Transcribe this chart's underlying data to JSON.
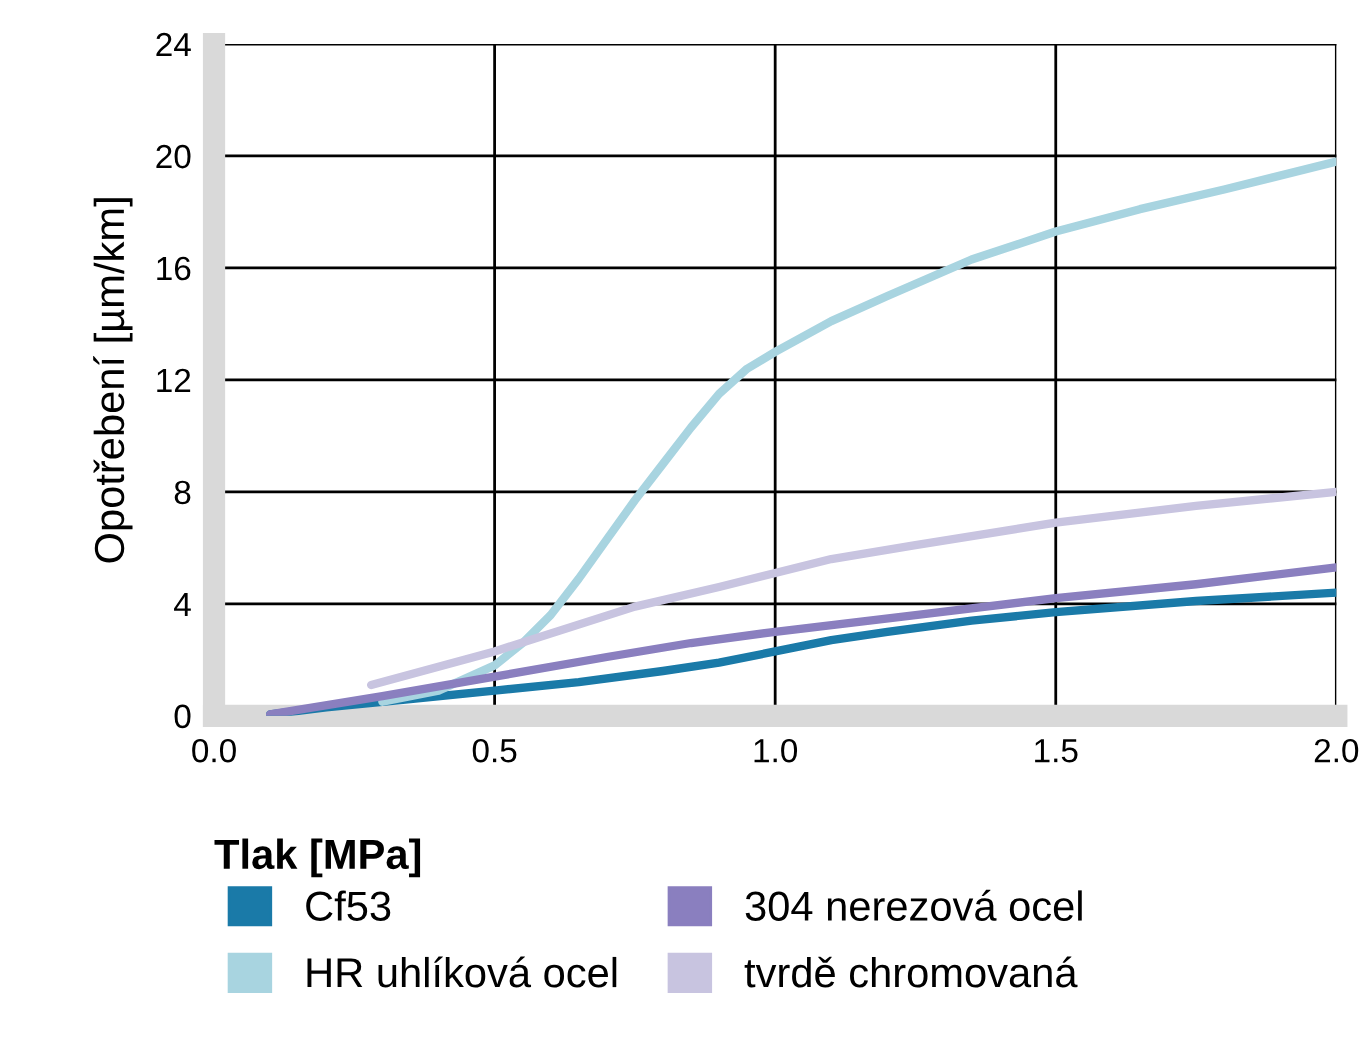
{
  "chart_data": {
    "type": "line",
    "xlabel": "Tlak [MPa]",
    "ylabel": "Opotřebení [µm/km]",
    "xlim": [
      0,
      2
    ],
    "ylim": [
      0,
      24
    ],
    "xticks": [
      {
        "value": 0,
        "label": "0.0"
      },
      {
        "value": 0.5,
        "label": "0.5"
      },
      {
        "value": 1,
        "label": "1.0"
      },
      {
        "value": 1.5,
        "label": "1.5"
      },
      {
        "value": 2,
        "label": "2.0"
      }
    ],
    "yticks": [
      0,
      4,
      8,
      12,
      16,
      20,
      24
    ],
    "grid": true,
    "legend": "bottom",
    "marker": "none",
    "line_style": "solid",
    "series": [
      {
        "name": "Cf53",
        "color": "#1a7aa8",
        "x": [
          0.1,
          0.2,
          0.35,
          0.5,
          0.65,
          0.8,
          0.9,
          1.0,
          1.1,
          1.2,
          1.35,
          1.5,
          1.75,
          2.0
        ],
        "values": [
          0.05,
          0.3,
          0.6,
          0.9,
          1.2,
          1.6,
          1.9,
          2.3,
          2.7,
          3.0,
          3.4,
          3.7,
          4.1,
          4.4
        ]
      },
      {
        "name": "HR uhlíková ocel",
        "color": "#a8d4e0",
        "x": [
          0.3,
          0.4,
          0.5,
          0.55,
          0.6,
          0.65,
          0.7,
          0.75,
          0.8,
          0.85,
          0.9,
          0.95,
          1.0,
          1.1,
          1.2,
          1.35,
          1.5,
          1.65,
          1.8,
          2.0
        ],
        "values": [
          0.5,
          0.9,
          1.8,
          2.6,
          3.6,
          4.9,
          6.3,
          7.7,
          9.0,
          10.3,
          11.5,
          12.4,
          13.0,
          14.1,
          15.0,
          16.3,
          17.3,
          18.1,
          18.8,
          19.8
        ]
      },
      {
        "name": "304 nerezová ocel",
        "color": "#8a7fbf",
        "x": [
          0.1,
          0.3,
          0.5,
          0.7,
          0.85,
          1.0,
          1.25,
          1.5,
          1.75,
          2.0
        ],
        "values": [
          0.05,
          0.7,
          1.4,
          2.1,
          2.6,
          3.0,
          3.6,
          4.2,
          4.7,
          5.3
        ]
      },
      {
        "name": "tvrdě chromovaná",
        "color": "#c8c4e0",
        "x": [
          0.28,
          0.5,
          0.75,
          0.9,
          1.0,
          1.1,
          1.25,
          1.5,
          1.75,
          2.0
        ],
        "values": [
          1.1,
          2.3,
          3.9,
          4.6,
          5.1,
          5.6,
          6.1,
          6.9,
          7.5,
          8.0
        ]
      }
    ]
  }
}
